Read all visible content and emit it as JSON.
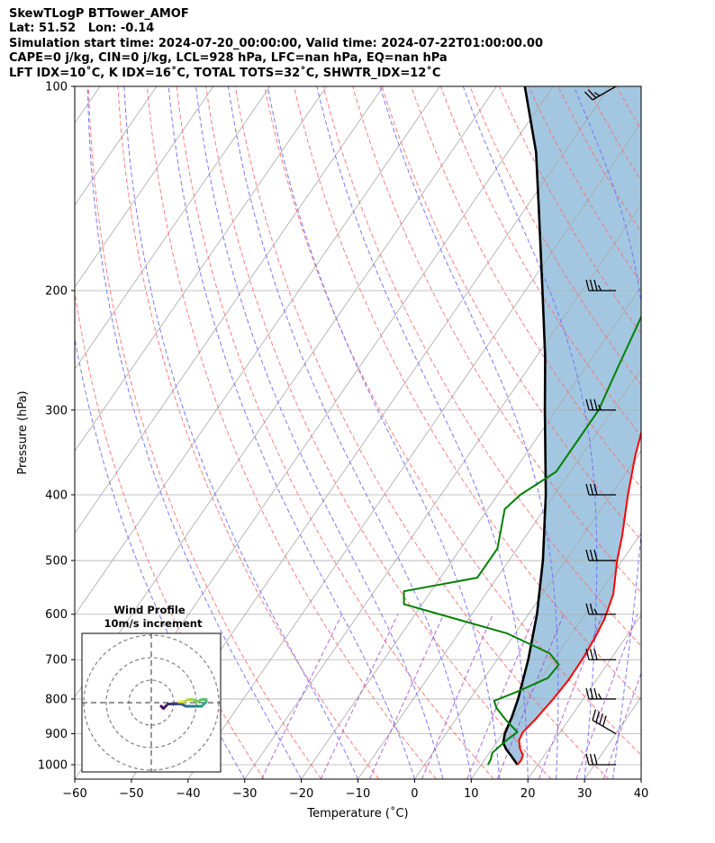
{
  "header": {
    "line1": "SkewTLogP BTTower_AMOF",
    "line2": "Lat: 51.52   Lon: -0.14",
    "line3": "Simulation start time: 2024-07-20_00:00:00, Valid time: 2024-07-22T01:00:00.00",
    "line4": "CAPE=0 j/kg, CIN=0 j/kg, LCL=928 hPa, LFC=nan hPa, EQ=nan hPa",
    "line5": "LFT IDX=10˚C, K IDX=16˚C, TOTAL TOTS=32˚C, SHWTR_IDX=12˚C"
  },
  "chart_data": {
    "type": "line",
    "subtype": "skew-T log-P",
    "xlabel": "Temperature (˚C)",
    "ylabel": "Pressure (hPa)",
    "xlim": [
      -60,
      40
    ],
    "ylim": [
      1050,
      100
    ],
    "y_scale": "log",
    "x_ticks": [
      "−60",
      "−50",
      "−40",
      "−30",
      "−20",
      "−10",
      "0",
      "10",
      "20",
      "30",
      "40"
    ],
    "x_tick_values": [
      -60,
      -50,
      -40,
      -30,
      -20,
      -10,
      0,
      10,
      20,
      30,
      40
    ],
    "y_ticks": [
      "1000",
      "900",
      "800",
      "700",
      "600",
      "500",
      "400",
      "300",
      "200",
      "100"
    ],
    "y_tick_values": [
      1000,
      900,
      800,
      700,
      600,
      500,
      400,
      300,
      200,
      100
    ],
    "grid": true,
    "colors": {
      "temperature": "#ff0000",
      "dewpoint": "#008000",
      "parcel": "#000000",
      "shading": "#a3c7e0",
      "dry_adiabats": "#ff6666",
      "moist_adiabats": "#6a6aff",
      "mixing_ratio": "#9933cc",
      "isotherms": "#aaaaaa"
    },
    "series": [
      {
        "name": "",
        "role": "temperature",
        "points": [
          [
            1000,
            16.4
          ],
          [
            985,
            16.5
          ],
          [
            968,
            16.2
          ],
          [
            945,
            14.8
          ],
          [
            920,
            13.7
          ],
          [
            895,
            13.4
          ],
          [
            860,
            14.0
          ],
          [
            800,
            14.7
          ],
          [
            750,
            15.1
          ],
          [
            700,
            15.0
          ],
          [
            650,
            14.6
          ],
          [
            610,
            14.0
          ],
          [
            560,
            12.5
          ],
          [
            500,
            9.1
          ],
          [
            460,
            7.0
          ],
          [
            400,
            3.0
          ],
          [
            350,
            -0.5
          ],
          [
            310,
            -3.2
          ],
          [
            280,
            -4.3
          ],
          [
            250,
            -5.0
          ],
          [
            215,
            -5.3
          ],
          [
            190,
            -6.5
          ],
          [
            170,
            -7.3
          ],
          [
            150,
            -8.5
          ],
          [
            130,
            -9.5
          ],
          [
            115,
            -10.5
          ],
          [
            100,
            -12.0
          ]
        ]
      },
      {
        "name": "",
        "role": "dewpoint",
        "points": [
          [
            1000,
            11.2
          ],
          [
            980,
            11.0
          ],
          [
            960,
            10.5
          ],
          [
            920,
            11.5
          ],
          [
            895,
            12.4
          ],
          [
            860,
            9.0
          ],
          [
            825,
            5.8
          ],
          [
            805,
            4.5
          ],
          [
            780,
            7.5
          ],
          [
            745,
            11.2
          ],
          [
            712,
            11.5
          ],
          [
            685,
            8.5
          ],
          [
            640,
            -1.5
          ],
          [
            580,
            -23.2
          ],
          [
            555,
            -24.8
          ],
          [
            530,
            -13.5
          ],
          [
            480,
            -13.5
          ],
          [
            420,
            -17.0
          ],
          [
            400,
            -16.0
          ],
          [
            370,
            -12.5
          ],
          [
            330,
            -12.5
          ],
          [
            300,
            -12.5
          ],
          [
            260,
            -14.3
          ],
          [
            225,
            -16.0
          ],
          [
            200,
            -17.5
          ],
          [
            185,
            -17.8
          ],
          [
            170,
            -17.7
          ],
          [
            160,
            -20.3
          ],
          [
            150,
            -23.6
          ],
          [
            140,
            -25.0
          ],
          [
            128,
            -21.9
          ],
          [
            115,
            -17.0
          ],
          [
            100,
            -11.5
          ]
        ]
      },
      {
        "name": "",
        "role": "parcel",
        "points": [
          [
            1000,
            16.4
          ],
          [
            970,
            14.2
          ],
          [
            950,
            12.6
          ],
          [
            928,
            11.2
          ],
          [
            900,
            10.4
          ],
          [
            850,
            9.6
          ],
          [
            800,
            8.5
          ],
          [
            700,
            5.5
          ],
          [
            600,
            1.5
          ],
          [
            500,
            -4.0
          ],
          [
            400,
            -11.5
          ],
          [
            300,
            -22.0
          ],
          [
            250,
            -28.5
          ],
          [
            200,
            -37.0
          ],
          [
            150,
            -48.0
          ],
          [
            125,
            -55.0
          ],
          [
            100,
            -65.0
          ]
        ]
      }
    ],
    "wind_barbs": [
      {
        "p": 1000,
        "dir": 270,
        "spd": 30
      },
      {
        "p": 900,
        "dir": 300,
        "spd": 40
      },
      {
        "p": 800,
        "dir": 270,
        "spd": 35
      },
      {
        "p": 700,
        "dir": 270,
        "spd": 30
      },
      {
        "p": 600,
        "dir": 270,
        "spd": 25
      },
      {
        "p": 500,
        "dir": 270,
        "spd": 30
      },
      {
        "p": 400,
        "dir": 270,
        "spd": 30
      },
      {
        "p": 300,
        "dir": 270,
        "spd": 35
      },
      {
        "p": 200,
        "dir": 270,
        "spd": 35
      },
      {
        "p": 100,
        "dir": 240,
        "spd": 25
      }
    ],
    "inset": {
      "title": "Wind Profile",
      "subtitle": "10m/s increment",
      "type": "hodograph",
      "ring_step": 10,
      "rings": 3,
      "points": [
        [
          0,
          0
        ],
        [
          1,
          -1
        ],
        [
          2,
          0
        ],
        [
          3,
          1
        ],
        [
          5,
          1
        ],
        [
          7,
          1
        ],
        [
          9,
          1
        ],
        [
          11,
          0
        ],
        [
          13,
          0
        ],
        [
          15,
          0
        ],
        [
          17,
          0
        ],
        [
          18,
          0
        ],
        [
          19,
          1
        ],
        [
          20,
          2
        ],
        [
          20,
          3
        ],
        [
          18,
          3
        ],
        [
          16,
          2
        ],
        [
          14,
          3
        ],
        [
          12,
          3
        ],
        [
          10,
          2
        ],
        [
          9,
          2
        ],
        [
          8,
          2
        ]
      ]
    }
  }
}
